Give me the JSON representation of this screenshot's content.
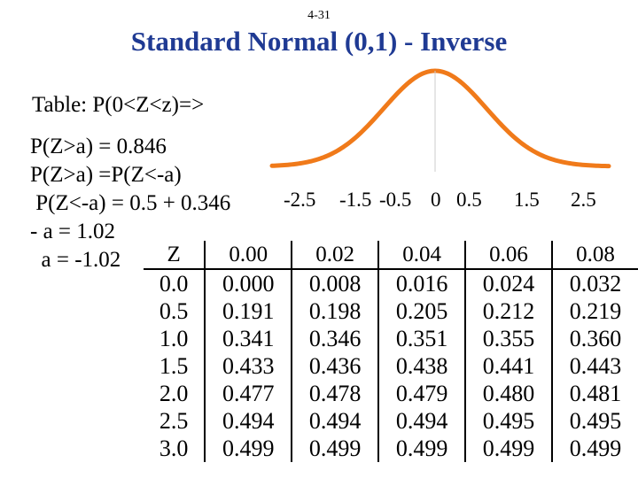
{
  "slide": {
    "number": "4-31",
    "title": "Standard Normal (0,1) - Inverse"
  },
  "caption": "Table:  P(0<Z<z)=>",
  "derivation": [
    "P(Z>a) = 0.846",
    "P(Z>a) =P(Z<-a)",
    " P(Z<-a) = 0.5 + 0.346",
    "- a = 1.02",
    "  a = -1.02"
  ],
  "curve": {
    "color": "#f07a1a",
    "x_ticks": [
      "-2.5",
      "-1.5",
      "-0.5",
      "0",
      "0.5",
      "1.5",
      "2.5"
    ]
  },
  "table": {
    "headers": [
      "Z",
      "0.00",
      "0.02",
      "0.04",
      "0.06",
      "0.08"
    ],
    "rows": [
      [
        "0.0",
        "0.000",
        "0.008",
        "0.016",
        "0.024",
        "0.032"
      ],
      [
        "0.5",
        "0.191",
        "0.198",
        "0.205",
        "0.212",
        "0.219"
      ],
      [
        "1.0",
        "0.341",
        "0.346",
        "0.351",
        "0.355",
        "0.360"
      ],
      [
        "1.5",
        "0.433",
        "0.436",
        "0.438",
        "0.441",
        "0.443"
      ],
      [
        "2.0",
        "0.477",
        "0.478",
        "0.479",
        "0.480",
        "0.481"
      ],
      [
        "2.5",
        "0.494",
        "0.494",
        "0.494",
        "0.495",
        "0.495"
      ],
      [
        "3.0",
        "0.499",
        "0.499",
        "0.499",
        "0.499",
        "0.499"
      ]
    ]
  }
}
